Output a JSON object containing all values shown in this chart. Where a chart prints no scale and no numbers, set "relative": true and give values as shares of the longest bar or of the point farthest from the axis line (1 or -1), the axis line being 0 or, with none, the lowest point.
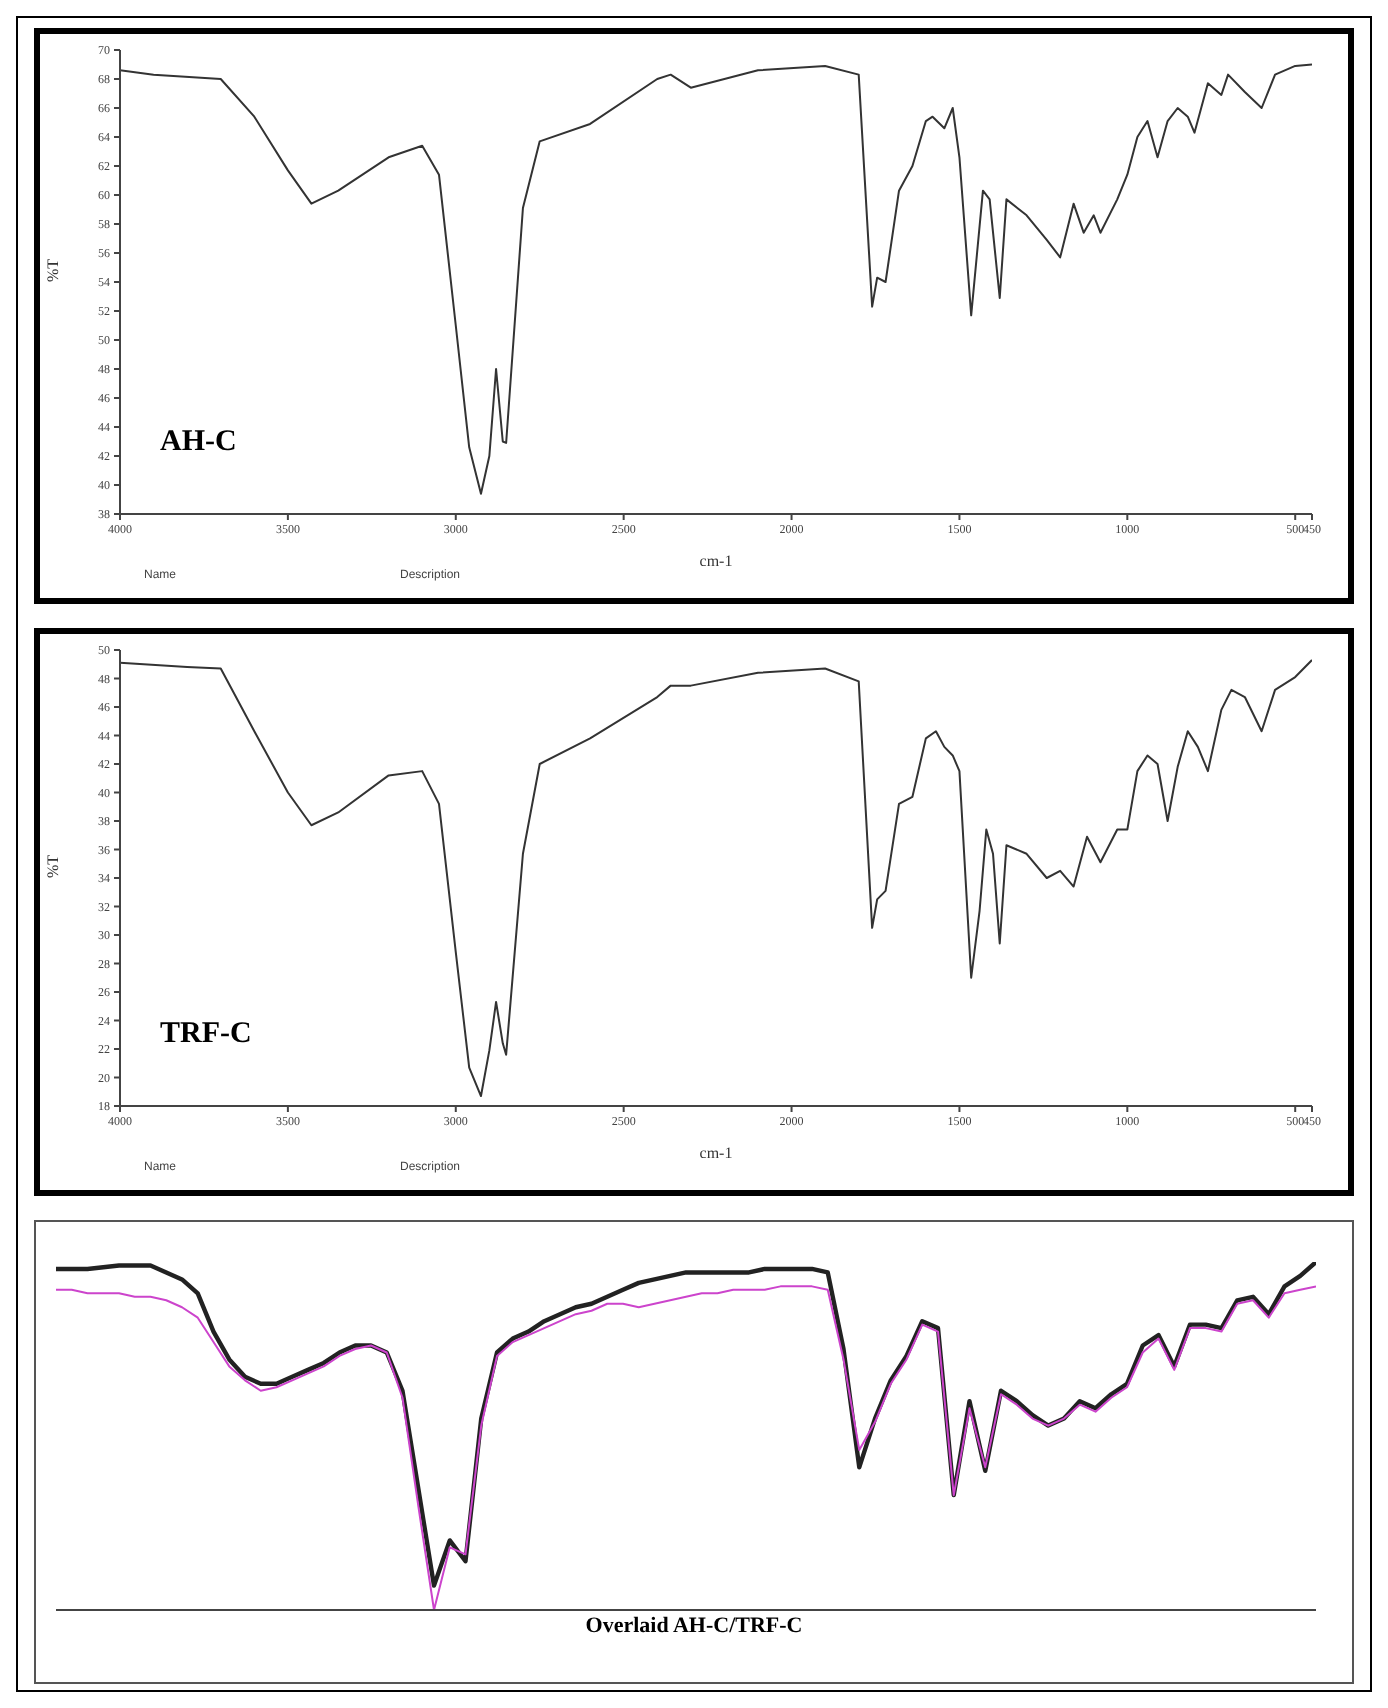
{
  "chart_data": [
    {
      "type": "line",
      "xlabel": "cm-1",
      "ylabel": "%T",
      "xlim": [
        4000,
        450
      ],
      "xticks": [
        4000,
        3500,
        3000,
        2500,
        2000,
        1500,
        1000,
        500,
        450
      ],
      "ylim": [
        38,
        70
      ],
      "yticks": [
        38,
        40,
        42,
        44,
        46,
        48,
        50,
        52,
        54,
        56,
        58,
        60,
        62,
        64,
        66,
        68,
        70
      ],
      "annotations": [
        "AH-C",
        "Name",
        "Description"
      ],
      "x": [
        4000,
        3900,
        3700,
        3600,
        3500,
        3430,
        3350,
        3200,
        3100,
        3050,
        3000,
        2960,
        2925,
        2900,
        2880,
        2860,
        2850,
        2800,
        2750,
        2600,
        2400,
        2360,
        2300,
        2100,
        1900,
        1800,
        1760,
        1745,
        1720,
        1680,
        1640,
        1600,
        1580,
        1545,
        1520,
        1500,
        1465,
        1430,
        1410,
        1380,
        1360,
        1300,
        1240,
        1200,
        1160,
        1130,
        1100,
        1080,
        1030,
        1000,
        970,
        940,
        910,
        880,
        850,
        820,
        800,
        760,
        720,
        700,
        650,
        600,
        560,
        500,
        450
      ],
      "series": [
        {
          "color": "#333333",
          "values": [
            68.6,
            68.3,
            68,
            65.4,
            61.7,
            59.4,
            60.3,
            62.6,
            63.4,
            61.4,
            51,
            42.6,
            39.4,
            42,
            48,
            43,
            42.9,
            59.1,
            63.7,
            64.9,
            68,
            68.3,
            67.4,
            68.6,
            68.9,
            68.3,
            52.3,
            54.3,
            54,
            60.3,
            62,
            65.1,
            65.4,
            64.6,
            66,
            62.6,
            51.7,
            60.3,
            59.7,
            52.9,
            59.7,
            58.6,
            56.9,
            55.7,
            59.4,
            57.4,
            58.6,
            57.4,
            59.7,
            61.4,
            64,
            65.1,
            62.6,
            65.1,
            66,
            65.4,
            64.3,
            67.7,
            66.9,
            68.3,
            67.1,
            66,
            68.3,
            68.9,
            69
          ]
        }
      ]
    },
    {
      "type": "line",
      "xlabel": "cm-1",
      "ylabel": "%T",
      "xlim": [
        4000,
        450
      ],
      "xticks": [
        4000,
        3500,
        3000,
        2500,
        2000,
        1500,
        1000,
        500,
        450
      ],
      "ylim": [
        18,
        50
      ],
      "yticks": [
        18,
        20,
        22,
        24,
        26,
        28,
        30,
        32,
        34,
        36,
        38,
        40,
        42,
        44,
        46,
        48,
        50
      ],
      "annotations": [
        "TRF-C",
        "Name",
        "Description"
      ],
      "x": [
        4000,
        3800,
        3700,
        3600,
        3500,
        3430,
        3350,
        3200,
        3100,
        3050,
        3000,
        2960,
        2925,
        2900,
        2880,
        2860,
        2850,
        2800,
        2750,
        2600,
        2400,
        2360,
        2300,
        2100,
        1900,
        1800,
        1760,
        1745,
        1720,
        1680,
        1640,
        1600,
        1570,
        1545,
        1520,
        1500,
        1465,
        1440,
        1420,
        1400,
        1380,
        1360,
        1300,
        1240,
        1200,
        1160,
        1120,
        1080,
        1030,
        1000,
        970,
        940,
        910,
        880,
        850,
        820,
        790,
        760,
        720,
        690,
        650,
        600,
        560,
        500,
        450
      ],
      "series": [
        {
          "color": "#333333",
          "values": [
            49.1,
            48.8,
            48.7,
            44.3,
            40,
            37.7,
            38.6,
            41.2,
            41.5,
            39.2,
            28.8,
            20.7,
            18.7,
            21.9,
            25.3,
            22.4,
            21.6,
            35.7,
            42,
            43.8,
            46.7,
            47.5,
            47.5,
            48.4,
            48.7,
            47.8,
            30.5,
            32.5,
            33.1,
            39.2,
            39.7,
            43.8,
            44.3,
            43.2,
            42.6,
            41.5,
            27,
            31.7,
            37.4,
            35.7,
            29.4,
            36.3,
            35.7,
            34,
            34.5,
            33.4,
            36.9,
            35.1,
            37.4,
            37.4,
            41.5,
            42.6,
            42,
            38,
            41.8,
            44.3,
            43.2,
            41.5,
            45.8,
            47.2,
            46.7,
            44.3,
            47.2,
            48.1,
            49.3
          ]
        }
      ]
    },
    {
      "type": "line",
      "relative": true,
      "annotations": [
        "Overlaid AH-C/TRF-C"
      ],
      "categories": [
        null,
        null,
        null,
        null,
        null,
        null,
        null,
        null,
        null,
        null,
        null,
        null,
        null,
        null,
        null,
        null,
        null,
        null,
        null,
        null,
        null,
        null,
        null,
        null,
        null,
        null,
        null,
        null,
        null,
        null,
        null,
        null,
        null,
        null,
        null,
        null,
        null,
        null,
        null,
        null,
        null,
        null,
        null,
        null,
        null,
        null,
        null,
        null,
        null,
        null,
        null,
        null,
        null,
        null,
        null,
        null,
        null,
        null,
        null,
        null,
        null,
        null,
        null,
        null,
        null,
        null,
        null,
        null,
        null,
        null,
        null,
        null,
        null,
        null,
        null,
        null,
        null,
        null,
        null,
        null,
        null
      ],
      "series": [
        {
          "color": "#222222",
          "values": [
            0.98,
            0.98,
            0.98,
            0.985,
            0.99,
            0.99,
            0.99,
            0.97,
            0.95,
            0.91,
            0.8,
            0.72,
            0.67,
            0.65,
            0.65,
            0.67,
            0.69,
            0.71,
            0.74,
            0.76,
            0.76,
            0.74,
            0.63,
            0.35,
            0.07,
            0.2,
            0.14,
            0.55,
            0.74,
            0.78,
            0.8,
            0.83,
            0.85,
            0.87,
            0.88,
            0.9,
            0.92,
            0.94,
            0.95,
            0.96,
            0.97,
            0.97,
            0.97,
            0.97,
            0.97,
            0.98,
            0.98,
            0.98,
            0.98,
            0.97,
            0.75,
            0.41,
            0.55,
            0.66,
            0.73,
            0.83,
            0.81,
            0.33,
            0.6,
            0.4,
            0.63,
            0.6,
            0.56,
            0.53,
            0.55,
            0.6,
            0.58,
            0.62,
            0.65,
            0.76,
            0.79,
            0.7,
            0.82,
            0.82,
            0.81,
            0.89,
            0.9,
            0.85,
            0.93,
            0.96,
            1
          ]
        },
        {
          "color": "#cc44cc",
          "values": [
            0.92,
            0.92,
            0.91,
            0.91,
            0.91,
            0.9,
            0.9,
            0.89,
            0.87,
            0.84,
            0.77,
            0.7,
            0.66,
            0.63,
            0.64,
            0.66,
            0.68,
            0.7,
            0.73,
            0.75,
            0.76,
            0.74,
            0.61,
            0.3,
            0,
            0.18,
            0.16,
            0.53,
            0.73,
            0.77,
            0.79,
            0.81,
            0.83,
            0.85,
            0.86,
            0.88,
            0.88,
            0.87,
            0.88,
            0.89,
            0.9,
            0.91,
            0.91,
            0.92,
            0.92,
            0.92,
            0.93,
            0.93,
            0.93,
            0.92,
            0.72,
            0.46,
            0.54,
            0.65,
            0.72,
            0.82,
            0.8,
            0.33,
            0.58,
            0.41,
            0.62,
            0.59,
            0.55,
            0.53,
            0.55,
            0.59,
            0.57,
            0.61,
            0.64,
            0.74,
            0.78,
            0.69,
            0.81,
            0.81,
            0.8,
            0.88,
            0.89,
            0.84,
            0.91,
            0.92,
            0.93
          ]
        }
      ]
    }
  ]
}
